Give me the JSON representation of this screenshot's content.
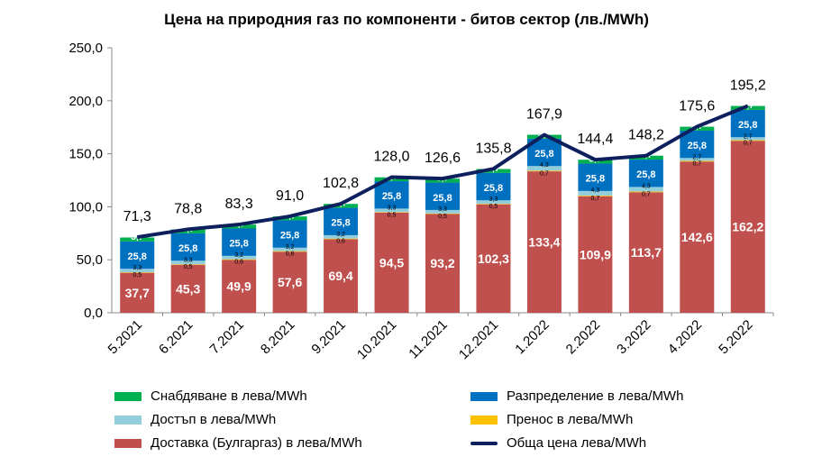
{
  "chart_data": {
    "type": "bar",
    "title": "Цена на природния газ по компоненти - битов сектор (лв./MWh)",
    "categories": [
      "5.2021",
      "6.2021",
      "7.2021",
      "8.2021",
      "9.2021",
      "10.2021",
      "11.2021",
      "12.2021",
      "1.2022",
      "2.2022",
      "3.2022",
      "4.2022",
      "5.2022"
    ],
    "ylim": [
      0,
      250
    ],
    "yticks": [
      "0,0",
      "50,0",
      "100,0",
      "150,0",
      "200,0",
      "250,0"
    ],
    "stacked": true,
    "series": [
      {
        "name": "Доставка (Булгаргаз) в лева/MWh",
        "color": "#c0504d",
        "values": [
          37.7,
          45.3,
          49.9,
          57.6,
          69.4,
          94.5,
          93.2,
          102.3,
          133.4,
          109.9,
          113.7,
          142.6,
          162.2
        ],
        "labels": [
          "37,7",
          "45,3",
          "49,9",
          "57,6",
          "69,4",
          "94,5",
          "93,2",
          "102,3",
          "133,4",
          "109,9",
          "113,7",
          "142,6",
          "162,2"
        ]
      },
      {
        "name": "Пренос в лева/MWh",
        "color": "#ffc000",
        "values": [
          0.5,
          0.5,
          0.6,
          0.6,
          0.6,
          0.5,
          0.5,
          0.5,
          0.7,
          0.7,
          0.7,
          0.7,
          0.7
        ],
        "labels": [
          "0,5",
          "0,5",
          "0,6",
          "0,6",
          "0,6",
          "0,5",
          "0,5",
          "0,5",
          "0,7",
          "0,7",
          "0,7",
          "0,7",
          "0,7"
        ]
      },
      {
        "name": "Достъп в лева/MWh",
        "color": "#92cddc",
        "values": [
          3.3,
          3.3,
          3.2,
          3.2,
          3.2,
          3.3,
          3.3,
          3.3,
          4.3,
          4.3,
          4.3,
          2.7,
          2.7
        ],
        "labels": [
          "3,3",
          "3,3",
          "3,2",
          "3,2",
          "3,2",
          "3,3",
          "3,3",
          "3,3",
          "4,3",
          "4,3",
          "4,3",
          "2,7",
          "2,7"
        ]
      },
      {
        "name": "Разпределение в лева/MWh",
        "color": "#0070c0",
        "values": [
          25.8,
          25.8,
          25.8,
          25.8,
          25.8,
          25.8,
          25.8,
          25.8,
          25.8,
          25.8,
          25.8,
          25.8,
          25.8
        ],
        "labels": [
          "25,8",
          "25,8",
          "25,8",
          "25,8",
          "25,8",
          "25,8",
          "25,8",
          "25,8",
          "25,8",
          "25,8",
          "25,8",
          "25,8",
          "25,8"
        ]
      },
      {
        "name": "Снабдяване в лева/MWh",
        "color": "#00b050",
        "values": [
          3.7,
          3.7,
          3.7,
          3.7,
          3.7,
          3.7,
          3.7,
          3.7,
          3.7,
          3.7,
          3.7,
          3.7,
          3.7
        ],
        "labels": [
          "3,7",
          "3,7",
          "3,7",
          "3,7",
          "3,7",
          "3,7",
          "3,7",
          "3,7",
          "3,7",
          "3,7",
          "3,7",
          "3,7",
          "3,7"
        ]
      }
    ],
    "line": {
      "name": "Обща цена лева/MWh",
      "color": "#0d1f5c",
      "values": [
        71.3,
        78.8,
        83.3,
        91.0,
        102.8,
        128.0,
        126.6,
        135.8,
        167.9,
        144.4,
        148.2,
        175.6,
        195.2
      ],
      "labels": [
        "71,3",
        "78,8",
        "83,3",
        "91,0",
        "102,8",
        "128,0",
        "126,6",
        "135,8",
        "167,9",
        "144,4",
        "148,2",
        "175,6",
        "195,2"
      ]
    },
    "legend": {
      "placement": "bottom",
      "items": [
        "Снабдяване в лева/MWh",
        "Разпределение в лева/MWh",
        "Достъп в лева/MWh",
        "Пренос в лева/MWh",
        "Доставка (Булгаргаз) в лева/MWh",
        "Обща цена лева/MWh"
      ]
    }
  }
}
